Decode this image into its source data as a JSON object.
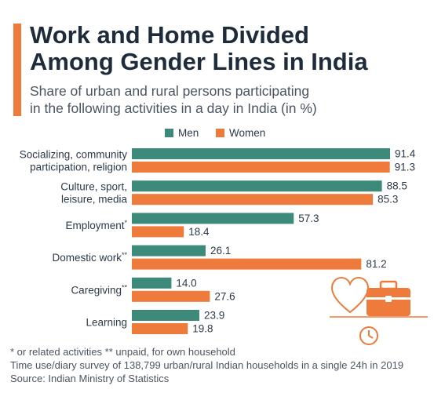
{
  "title": [
    "Work and Home Divided",
    "Among Gender Lines in India"
  ],
  "subtitle": [
    "Share of urban and rural persons participating",
    "in the following activities in a day in India (in %)"
  ],
  "colors": {
    "accent": "#ee7a3b",
    "men": "#3d8a7a",
    "women": "#ee7a3b",
    "deco": "#ee7a3b"
  },
  "icons": [
    "heart-icon",
    "briefcase-icon",
    "clock-icon"
  ],
  "chart_data": {
    "type": "bar",
    "orientation": "horizontal",
    "categories": [
      {
        "lines": [
          "Socializing, community",
          "participation, religion"
        ],
        "mark": ""
      },
      {
        "lines": [
          "Culture, sport,",
          "leisure, media"
        ],
        "mark": ""
      },
      {
        "lines": [
          "Employment"
        ],
        "mark": "*"
      },
      {
        "lines": [
          "Domestic work"
        ],
        "mark": "**"
      },
      {
        "lines": [
          "Caregiving"
        ],
        "mark": "**"
      },
      {
        "lines": [
          "Learning"
        ],
        "mark": ""
      }
    ],
    "series": [
      {
        "name": "Men",
        "values": [
          91.4,
          88.5,
          57.3,
          26.1,
          14.0,
          23.9
        ],
        "labels": [
          "91.4",
          "88.5",
          "57.3",
          "26.1",
          "14.0",
          "23.9"
        ]
      },
      {
        "name": "Women",
        "values": [
          91.3,
          85.3,
          18.4,
          81.2,
          27.6,
          19.8
        ],
        "labels": [
          "91.3",
          "85.3",
          "18.4",
          "81.2",
          "27.6",
          "19.8"
        ]
      }
    ],
    "xlim": [
      0,
      100
    ],
    "legend_position": "top",
    "grid": false
  },
  "notes": [
    "* or related activities     ** unpaid, for own household",
    "Time use/diary survey of 138,799 urban/rural Indian households in a single 24h in 2019",
    "Source: Indian Ministry of Statistics"
  ]
}
